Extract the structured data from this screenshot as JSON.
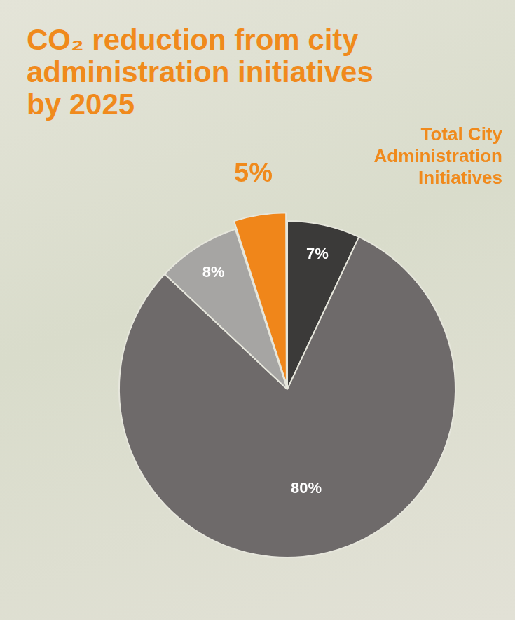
{
  "chart_data": {
    "type": "pie",
    "title": "CO₂ reduction from city administration initiatives by 2025",
    "annotation": "Total City Administration Initiatives",
    "values": [
      7,
      80,
      8,
      5
    ],
    "value_labels": [
      "7%",
      "80%",
      "8%",
      "5%"
    ],
    "colors": [
      "#3b3a39",
      "#6e6a6a",
      "#a6a5a3",
      "#f0861a"
    ],
    "data_labels": true
  }
}
